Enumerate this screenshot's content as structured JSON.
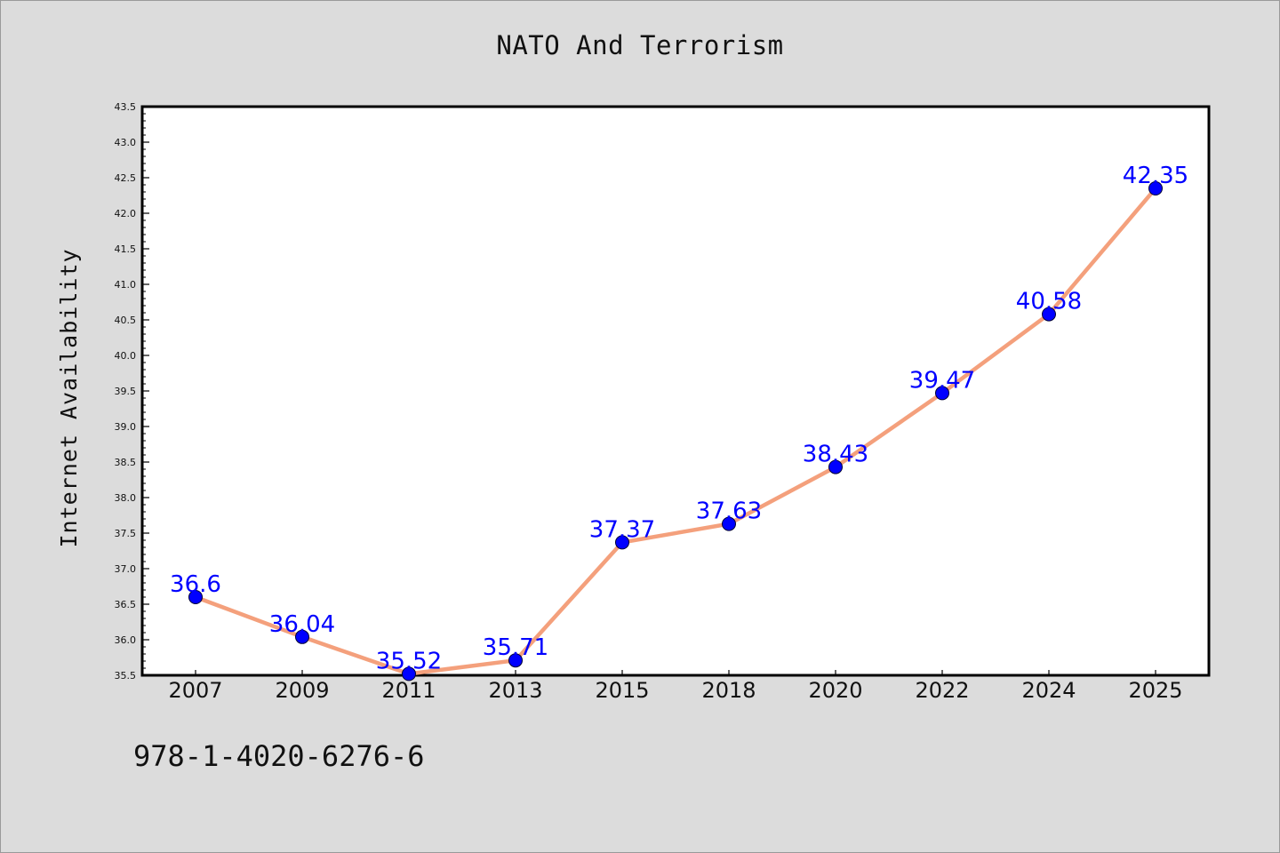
{
  "title": "NATO And Terrorism",
  "footer_text": "978-1-4020-6276-6",
  "colors": {
    "background": "#dcdcdc",
    "plot_background": "#ffffff",
    "line": "#f4a07c",
    "marker": "#0000ff",
    "data_label": "#0000ff"
  },
  "chart_data": {
    "type": "line",
    "title": "NATO And Terrorism",
    "xlabel": "",
    "ylabel": "Internet Availability",
    "categories": [
      "2007",
      "2009",
      "2011",
      "2013",
      "2015",
      "2018",
      "2020",
      "2022",
      "2024",
      "2025"
    ],
    "series": [
      {
        "values": [
          36.6,
          36.04,
          35.52,
          35.71,
          37.37,
          37.63,
          38.43,
          39.47,
          40.58,
          42.35
        ],
        "labels": [
          "36.6",
          "36.04",
          "35.52",
          "35.71",
          "37.37",
          "37.63",
          "38.43",
          "39.47",
          "40.58",
          "42.35"
        ]
      }
    ],
    "ylim": [
      35.5,
      43.5
    ],
    "yticks": [
      "35.5",
      "36.0",
      "36.5",
      "37.0",
      "37.5",
      "38.0",
      "38.5",
      "39.0",
      "39.5",
      "40.0",
      "40.5",
      "41.0",
      "41.5",
      "42.0",
      "42.5",
      "43.0",
      "43.5"
    ],
    "grid": false,
    "legend": "none"
  }
}
